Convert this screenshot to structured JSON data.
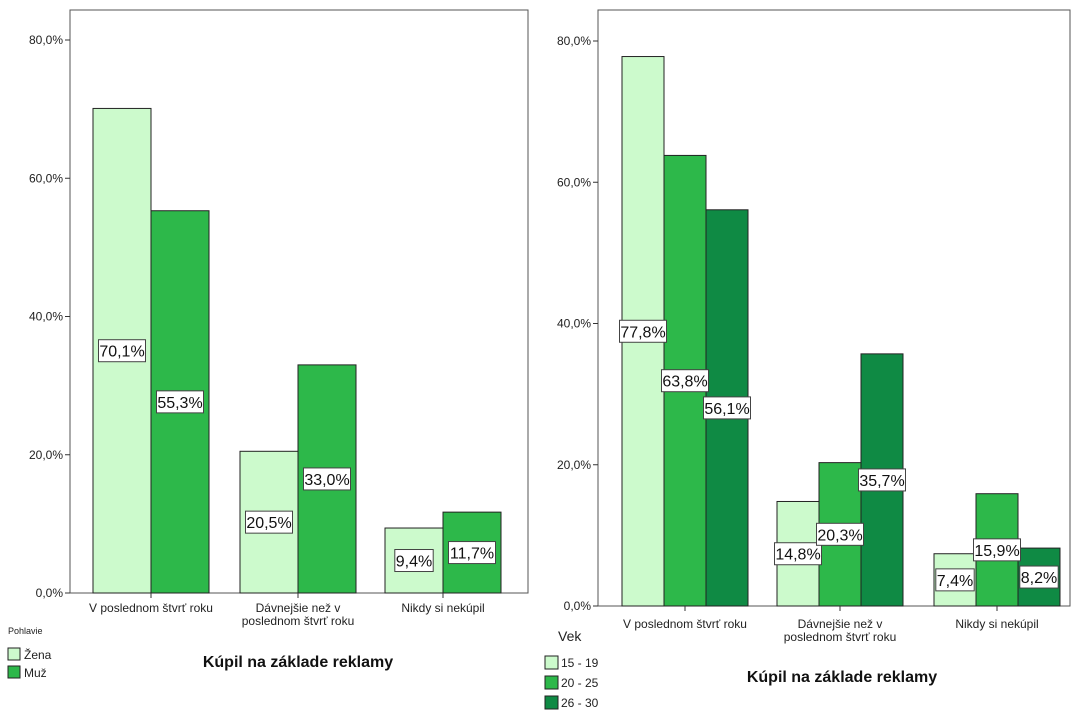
{
  "chart_data": [
    {
      "type": "bar",
      "categories": [
        [
          "V poslednom štvrť roku"
        ],
        [
          "Dávnejšie než v",
          "poslednom štvrť roku"
        ],
        [
          "Nikdy si nekúpil"
        ]
      ],
      "series": [
        {
          "name": "Žena",
          "values": [
            70.1,
            20.5,
            9.4
          ],
          "labels": [
            "70,1%",
            "20,5%",
            "9,4%"
          ],
          "color": "#ccfacc"
        },
        {
          "name": "Muž",
          "values": [
            55.3,
            33.0,
            11.7
          ],
          "labels": [
            "55,3%",
            "33,0%",
            "11,7%"
          ],
          "color": "#2db84a"
        }
      ],
      "xlabel": "Kúpil na základe reklamy",
      "legend_title": "Pohlavie",
      "yticks": [
        "0,0%",
        "20,0%",
        "40,0%",
        "60,0%",
        "80,0%"
      ],
      "ylim": [
        0,
        80
      ],
      "legend_position": "bottom-left",
      "grid": false
    },
    {
      "type": "bar",
      "categories": [
        [
          "V poslednom štvrť roku"
        ],
        [
          "Dávnejšie než v",
          "poslednom štvrť roku"
        ],
        [
          "Nikdy si nekúpil"
        ]
      ],
      "series": [
        {
          "name": "15 - 19",
          "values": [
            77.8,
            14.8,
            7.4
          ],
          "labels": [
            "77,8%",
            "14,8%",
            "7,4%"
          ],
          "color": "#ccfacc"
        },
        {
          "name": "20 - 25",
          "values": [
            63.8,
            20.3,
            15.9
          ],
          "labels": [
            "63,8%",
            "20,3%",
            "15,9%"
          ],
          "color": "#2db84a"
        },
        {
          "name": "26 - 30",
          "values": [
            56.1,
            35.7,
            8.2
          ],
          "labels": [
            "56,1%",
            "35,7%",
            "8,2%"
          ],
          "color": "#0f8a44"
        }
      ],
      "xlabel": "Kúpil na základe reklamy",
      "legend_title": "Vek",
      "yticks": [
        "0,0%",
        "20,0%",
        "40,0%",
        "60,0%",
        "80,0%"
      ],
      "ylim": [
        0,
        80
      ],
      "legend_position": "bottom-left",
      "grid": false
    }
  ]
}
